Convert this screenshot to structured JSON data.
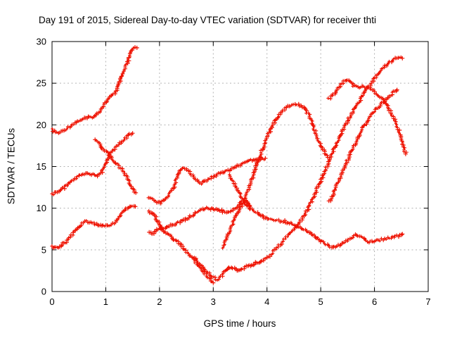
{
  "title": "Day 191 of 2015, Sidereal Day-to-day VTEC variation (SDTVAR) for receiver thti",
  "chart_data": {
    "type": "scatter",
    "title": "Day 191 of 2015, Sidereal Day-to-day VTEC variation (SDTVAR) for receiver thti",
    "xlabel": "GPS time / hours",
    "ylabel": "SDTVAR / TECUs",
    "xlim": [
      0,
      7
    ],
    "ylim": [
      0,
      30
    ],
    "xticks": [
      0,
      1,
      2,
      3,
      4,
      5,
      6,
      7
    ],
    "yticks": [
      0,
      5,
      10,
      15,
      20,
      25,
      30
    ],
    "grid": true,
    "legend": false,
    "marker": "plus",
    "marker_color": "#ee1100",
    "grid_color": "#b4b4b4",
    "series": [
      {
        "name": "s1",
        "points": [
          [
            0,
            19.4
          ],
          [
            0.06,
            19.15
          ],
          [
            0.12,
            19.0
          ],
          [
            0.2,
            19.25
          ],
          [
            0.3,
            19.7
          ],
          [
            0.4,
            20.15
          ],
          [
            0.5,
            20.5
          ],
          [
            0.6,
            20.75
          ],
          [
            0.7,
            20.9
          ],
          [
            0.8,
            21.05
          ],
          [
            0.88,
            21.6
          ],
          [
            0.95,
            22.3
          ],
          [
            1.02,
            22.9
          ],
          [
            1.08,
            23.3
          ],
          [
            1.15,
            23.65
          ],
          [
            1.2,
            24.2
          ],
          [
            1.27,
            25.3
          ],
          [
            1.34,
            26.4
          ],
          [
            1.4,
            27.4
          ],
          [
            1.46,
            28.5
          ],
          [
            1.5,
            29.1
          ],
          [
            1.54,
            29.3
          ],
          [
            1.58,
            29.25
          ]
        ]
      },
      {
        "name": "s2",
        "points": [
          [
            0,
            11.7
          ],
          [
            0.1,
            11.9
          ],
          [
            0.2,
            12.35
          ],
          [
            0.3,
            12.85
          ],
          [
            0.4,
            13.4
          ],
          [
            0.5,
            13.85
          ],
          [
            0.6,
            14.1
          ],
          [
            0.68,
            14.2
          ],
          [
            0.76,
            14.0
          ],
          [
            0.84,
            13.85
          ],
          [
            0.92,
            14.35
          ],
          [
            1.0,
            15.4
          ],
          [
            1.06,
            16.3
          ],
          [
            1.12,
            16.85
          ],
          [
            1.2,
            17.4
          ],
          [
            1.28,
            17.9
          ],
          [
            1.36,
            18.4
          ],
          [
            1.44,
            18.8
          ],
          [
            1.5,
            19.0
          ]
        ]
      },
      {
        "name": "s3",
        "points": [
          [
            0.8,
            18.25
          ],
          [
            0.85,
            17.95
          ],
          [
            0.9,
            17.5
          ],
          [
            0.96,
            17.0
          ],
          [
            1.02,
            16.7
          ],
          [
            1.07,
            16.35
          ],
          [
            1.13,
            15.9
          ],
          [
            1.2,
            15.35
          ],
          [
            1.28,
            14.8
          ],
          [
            1.35,
            14.2
          ],
          [
            1.42,
            13.4
          ],
          [
            1.48,
            12.6
          ],
          [
            1.53,
            12.0
          ],
          [
            1.56,
            11.85
          ]
        ]
      },
      {
        "name": "s4",
        "points": [
          [
            0,
            5.35
          ],
          [
            0.07,
            5.35
          ],
          [
            0.13,
            5.2
          ],
          [
            0.2,
            5.75
          ],
          [
            0.28,
            6.1
          ],
          [
            0.36,
            6.7
          ],
          [
            0.44,
            7.3
          ],
          [
            0.52,
            7.9
          ],
          [
            0.58,
            8.3
          ],
          [
            0.64,
            8.5
          ],
          [
            0.72,
            8.3
          ],
          [
            0.8,
            8.05
          ],
          [
            0.9,
            7.9
          ],
          [
            1.0,
            7.95
          ],
          [
            1.1,
            8.05
          ],
          [
            1.18,
            8.35
          ],
          [
            1.26,
            8.95
          ],
          [
            1.33,
            9.6
          ],
          [
            1.4,
            10.1
          ],
          [
            1.47,
            10.3
          ],
          [
            1.55,
            10.2
          ]
        ]
      },
      {
        "name": "s5",
        "points": [
          [
            1.8,
            11.35
          ],
          [
            1.87,
            11.1
          ],
          [
            1.95,
            10.8
          ],
          [
            2.02,
            10.65
          ],
          [
            2.1,
            10.9
          ],
          [
            2.18,
            11.5
          ],
          [
            2.26,
            12.6
          ],
          [
            2.34,
            13.8
          ],
          [
            2.4,
            14.7
          ],
          [
            2.45,
            14.95
          ],
          [
            2.5,
            14.75
          ],
          [
            2.57,
            14.2
          ],
          [
            2.65,
            13.6
          ],
          [
            2.72,
            13.2
          ],
          [
            2.78,
            13.0
          ],
          [
            2.85,
            13.2
          ],
          [
            2.93,
            13.5
          ],
          [
            3.0,
            13.8
          ],
          [
            3.1,
            14.1
          ],
          [
            3.2,
            14.3
          ],
          [
            3.3,
            14.55
          ],
          [
            3.4,
            14.9
          ],
          [
            3.5,
            15.2
          ],
          [
            3.6,
            15.65
          ],
          [
            3.7,
            15.8
          ],
          [
            3.8,
            15.8
          ],
          [
            3.9,
            15.9
          ],
          [
            3.97,
            16.0
          ]
        ]
      },
      {
        "name": "s6",
        "points": [
          [
            1.8,
            9.65
          ],
          [
            1.86,
            9.35
          ],
          [
            1.92,
            8.9
          ],
          [
            1.99,
            8.1
          ],
          [
            2.06,
            7.35
          ],
          [
            2.14,
            6.95
          ],
          [
            2.24,
            6.45
          ],
          [
            2.34,
            5.95
          ],
          [
            2.44,
            5.2
          ],
          [
            2.54,
            4.5
          ],
          [
            2.64,
            3.8
          ],
          [
            2.74,
            3.0
          ],
          [
            2.84,
            2.2
          ],
          [
            2.92,
            1.6
          ],
          [
            3.0,
            1.05
          ]
        ]
      },
      {
        "name": "s7",
        "points": [
          [
            1.8,
            7.05
          ],
          [
            1.86,
            6.9
          ],
          [
            1.93,
            7.25
          ],
          [
            2.0,
            7.55
          ],
          [
            2.1,
            7.65
          ],
          [
            2.2,
            7.9
          ],
          [
            2.3,
            8.05
          ],
          [
            2.42,
            8.5
          ],
          [
            2.54,
            8.9
          ],
          [
            2.66,
            9.4
          ],
          [
            2.78,
            9.8
          ],
          [
            2.9,
            10.0
          ],
          [
            3.0,
            9.95
          ],
          [
            3.1,
            9.8
          ],
          [
            3.22,
            9.5
          ],
          [
            3.32,
            9.6
          ],
          [
            3.44,
            10.2
          ],
          [
            3.56,
            10.95
          ],
          [
            3.62,
            10.9
          ],
          [
            3.7,
            10.0
          ],
          [
            3.8,
            9.55
          ],
          [
            3.92,
            8.95
          ],
          [
            4.04,
            8.65
          ],
          [
            4.16,
            8.55
          ],
          [
            4.3,
            8.45
          ],
          [
            4.42,
            8.25
          ],
          [
            4.54,
            7.9
          ],
          [
            4.66,
            7.5
          ],
          [
            4.78,
            7.05
          ],
          [
            4.9,
            6.6
          ],
          [
            5.02,
            6.0
          ],
          [
            5.12,
            5.55
          ],
          [
            5.2,
            5.35
          ],
          [
            5.3,
            5.45
          ],
          [
            5.42,
            5.85
          ],
          [
            5.54,
            6.35
          ],
          [
            5.64,
            6.8
          ],
          [
            5.72,
            6.6
          ],
          [
            5.82,
            6.2
          ],
          [
            5.9,
            6.0
          ],
          [
            6.0,
            6.05
          ],
          [
            6.1,
            6.2
          ],
          [
            6.22,
            6.35
          ],
          [
            6.34,
            6.5
          ],
          [
            6.44,
            6.7
          ],
          [
            6.52,
            6.9
          ]
        ]
      },
      {
        "name": "s8",
        "points": [
          [
            3.3,
            14.0
          ],
          [
            3.38,
            13.0
          ],
          [
            3.46,
            12.1
          ],
          [
            3.54,
            11.2
          ],
          [
            3.62,
            10.4
          ],
          [
            3.68,
            9.9
          ]
        ]
      },
      {
        "name": "s9",
        "points": [
          [
            2.64,
            4.0
          ],
          [
            2.72,
            3.5
          ],
          [
            2.8,
            2.9
          ],
          [
            2.9,
            2.25
          ],
          [
            3.0,
            1.7
          ],
          [
            3.07,
            1.45
          ],
          [
            3.14,
            1.8
          ],
          [
            3.22,
            2.45
          ],
          [
            3.29,
            2.95
          ],
          [
            3.36,
            2.85
          ],
          [
            3.44,
            2.55
          ],
          [
            3.54,
            2.7
          ],
          [
            3.64,
            3.1
          ],
          [
            3.76,
            3.35
          ],
          [
            3.88,
            3.6
          ],
          [
            3.98,
            3.95
          ],
          [
            4.06,
            4.4
          ],
          [
            4.16,
            5.1
          ],
          [
            4.26,
            5.8
          ],
          [
            4.36,
            6.5
          ],
          [
            4.46,
            7.2
          ],
          [
            4.56,
            7.9
          ],
          [
            4.66,
            8.8
          ],
          [
            4.76,
            9.9
          ],
          [
            4.86,
            11.3
          ],
          [
            4.96,
            12.8
          ],
          [
            5.06,
            14.2
          ],
          [
            5.16,
            15.7
          ],
          [
            5.26,
            17.3
          ],
          [
            5.36,
            18.7
          ],
          [
            5.46,
            20.0
          ],
          [
            5.56,
            21.2
          ],
          [
            5.66,
            22.2
          ],
          [
            5.76,
            23.3
          ],
          [
            5.86,
            24.3
          ],
          [
            5.96,
            25.2
          ],
          [
            6.06,
            26.0
          ],
          [
            6.16,
            26.8
          ],
          [
            6.26,
            27.4
          ],
          [
            6.36,
            27.85
          ],
          [
            6.44,
            28.05
          ],
          [
            6.52,
            28.0
          ]
        ]
      },
      {
        "name": "s10",
        "points": [
          [
            3.18,
            5.2
          ],
          [
            3.26,
            6.5
          ],
          [
            3.34,
            7.8
          ],
          [
            3.42,
            9.0
          ],
          [
            3.5,
            10.0
          ],
          [
            3.58,
            10.9
          ],
          [
            3.66,
            12.3
          ],
          [
            3.76,
            14.4
          ],
          [
            3.86,
            16.2
          ],
          [
            3.96,
            17.9
          ],
          [
            4.06,
            19.4
          ],
          [
            4.16,
            20.6
          ],
          [
            4.26,
            21.5
          ],
          [
            4.36,
            22.1
          ],
          [
            4.46,
            22.35
          ],
          [
            4.58,
            22.4
          ],
          [
            4.68,
            22.1
          ],
          [
            4.78,
            21.2
          ],
          [
            4.86,
            19.9
          ],
          [
            4.94,
            18.4
          ],
          [
            5.02,
            17.2
          ],
          [
            5.08,
            16.6
          ],
          [
            5.13,
            16.1
          ]
        ]
      },
      {
        "name": "s11",
        "points": [
          [
            5.16,
            10.8
          ],
          [
            5.22,
            11.5
          ],
          [
            5.3,
            12.8
          ],
          [
            5.38,
            14.0
          ],
          [
            5.48,
            15.5
          ],
          [
            5.58,
            17.0
          ],
          [
            5.68,
            18.3
          ],
          [
            5.78,
            19.6
          ],
          [
            5.88,
            20.6
          ],
          [
            5.98,
            21.5
          ],
          [
            6.08,
            22.2
          ],
          [
            6.18,
            22.9
          ],
          [
            6.28,
            23.5
          ],
          [
            6.36,
            23.95
          ],
          [
            6.42,
            24.2
          ]
        ]
      },
      {
        "name": "s12",
        "points": [
          [
            5.15,
            23.1
          ],
          [
            5.22,
            23.5
          ],
          [
            5.3,
            24.2
          ],
          [
            5.38,
            24.8
          ],
          [
            5.45,
            25.3
          ],
          [
            5.5,
            25.45
          ],
          [
            5.56,
            25.1
          ],
          [
            5.63,
            24.6
          ],
          [
            5.72,
            24.45
          ],
          [
            5.82,
            24.6
          ],
          [
            5.9,
            24.5
          ],
          [
            5.98,
            24.1
          ],
          [
            6.08,
            23.5
          ],
          [
            6.18,
            22.8
          ],
          [
            6.28,
            21.8
          ],
          [
            6.36,
            20.8
          ],
          [
            6.44,
            19.5
          ],
          [
            6.52,
            17.9
          ],
          [
            6.58,
            16.5
          ]
        ]
      }
    ]
  }
}
